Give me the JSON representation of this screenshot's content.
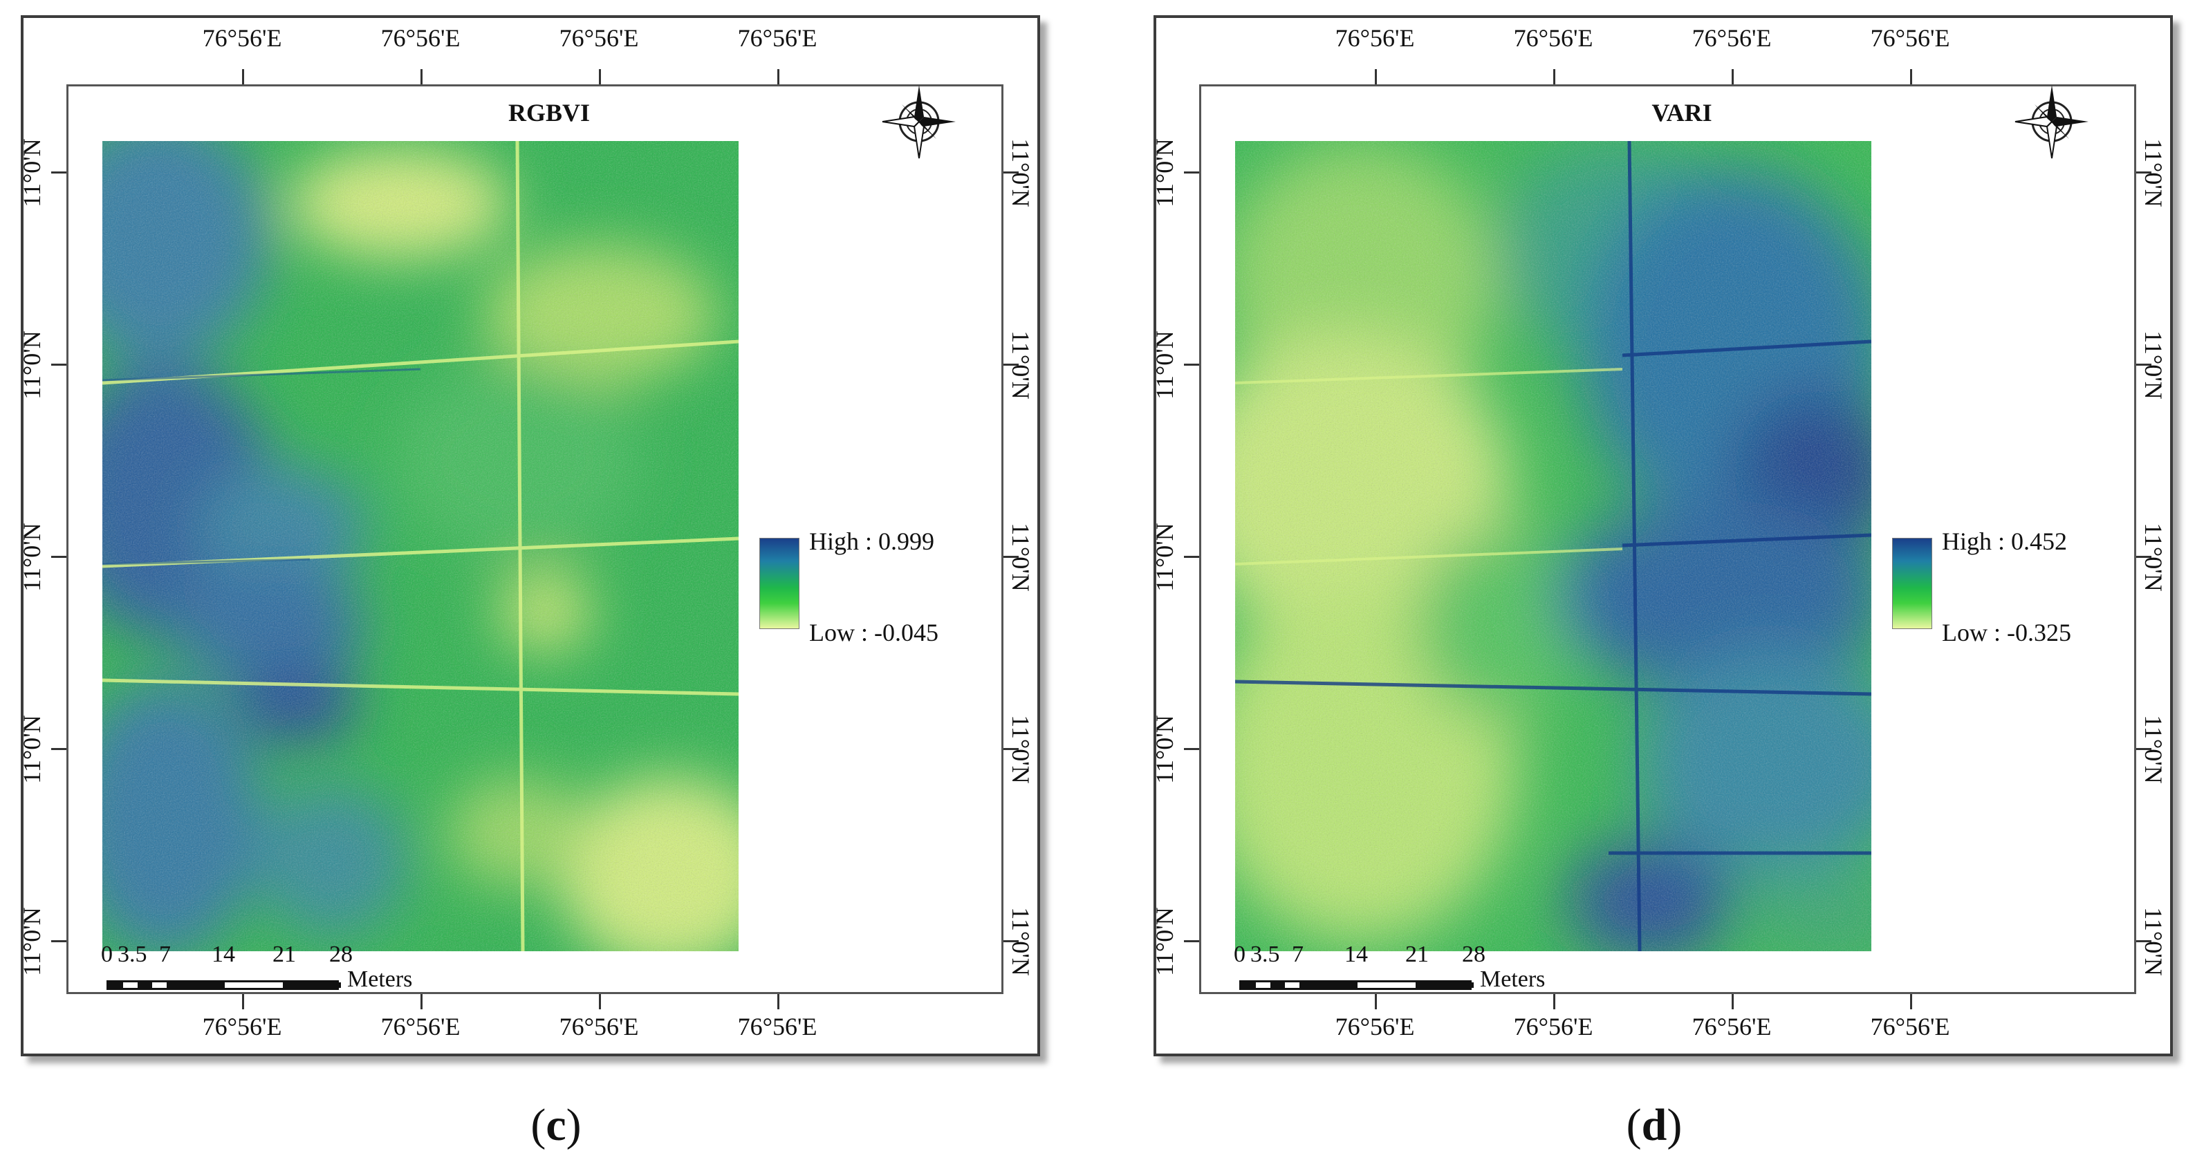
{
  "panels": [
    {
      "id": "c",
      "title": "RGBVI",
      "legend": {
        "high": "High : 0.999",
        "low": "Low : -0.045"
      },
      "lon_top": [
        "76°56'E",
        "76°56'E",
        "76°56'E",
        "76°56'E"
      ],
      "lon_bottom": [
        "76°56'E",
        "76°56'E",
        "76°56'E",
        "76°56'E"
      ],
      "lat_left": [
        "11°0'N",
        "11°0'N",
        "11°0'N",
        "11°0'N",
        "11°0'N"
      ],
      "lat_right": [
        "11°0'N",
        "11°0'N",
        "11°0'N",
        "11°0'N",
        "11°0'N"
      ],
      "scale": {
        "n0": "0",
        "n1": "3.5",
        "n2": "7",
        "n3": "14",
        "n4": "21",
        "n5": "28",
        "unit": "Meters"
      },
      "caption_open": "(",
      "caption_letter": "c",
      "caption_close": ")"
    },
    {
      "id": "d",
      "title": "VARI",
      "legend": {
        "high": "High : 0.452",
        "low": "Low : -0.325"
      },
      "lon_top": [
        "76°56'E",
        "76°56'E",
        "76°56'E",
        "76°56'E"
      ],
      "lon_bottom": [
        "76°56'E",
        "76°56'E",
        "76°56'E",
        "76°56'E"
      ],
      "lat_left": [
        "11°0'N",
        "11°0'N",
        "11°0'N",
        "11°0'N",
        "11°0'N"
      ],
      "lat_right": [
        "11°0'N",
        "11°0'N",
        "11°0'N",
        "11°0'N",
        "11°0'N"
      ],
      "scale": {
        "n0": "0",
        "n1": "3.5",
        "n2": "7",
        "n3": "14",
        "n4": "21",
        "n5": "28",
        "unit": "Meters"
      },
      "caption_open": "(",
      "caption_letter": "d",
      "caption_close": ")"
    }
  ],
  "colors": {
    "ramp_high": "#1a3f8a",
    "ramp_mid": "#1fb84a",
    "ramp_low": "#e8f7a0"
  }
}
